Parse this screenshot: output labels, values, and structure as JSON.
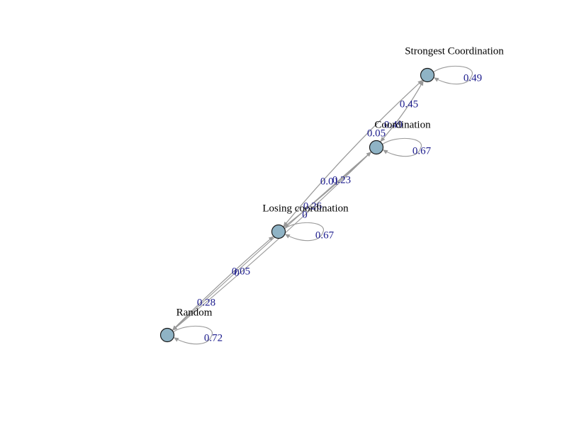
{
  "graph": {
    "colors": {
      "node_fill": "#8fb3c5",
      "node_stroke": "#1a1a1a",
      "edge": "#9a9a9a",
      "edge_label": "#1a1a8c"
    },
    "nodes": [
      {
        "id": "strongest",
        "label": "Strongest Coordination"
      },
      {
        "id": "coordination",
        "label": "Coordination"
      },
      {
        "id": "losing",
        "label": "Losing coordination"
      },
      {
        "id": "random",
        "label": "Random"
      }
    ],
    "edges": [
      {
        "from": "strongest",
        "to": "strongest",
        "label": "0.49"
      },
      {
        "from": "coordination",
        "to": "coordination",
        "label": "0.67"
      },
      {
        "from": "losing",
        "to": "losing",
        "label": "0.67"
      },
      {
        "from": "random",
        "to": "random",
        "label": "0.72"
      },
      {
        "from": "coordination",
        "to": "strongest",
        "label": "0.45"
      },
      {
        "from": "strongest",
        "to": "coordination",
        "label": "0.49"
      },
      {
        "from": "strongest",
        "to": "losing",
        "label": "0.05"
      },
      {
        "from": "losing",
        "to": "strongest",
        "label": "0.01"
      },
      {
        "from": "losing",
        "to": "coordination",
        "label": "0.23"
      },
      {
        "from": "coordination",
        "to": "losing",
        "label": "0.26"
      },
      {
        "from": "random",
        "to": "coordination",
        "label": "0"
      },
      {
        "from": "losing",
        "to": "random",
        "label": "0.05"
      },
      {
        "from": "random",
        "to": "losing",
        "label": "0"
      },
      {
        "from": "coordination",
        "to": "random",
        "label": "0.28"
      }
    ]
  }
}
